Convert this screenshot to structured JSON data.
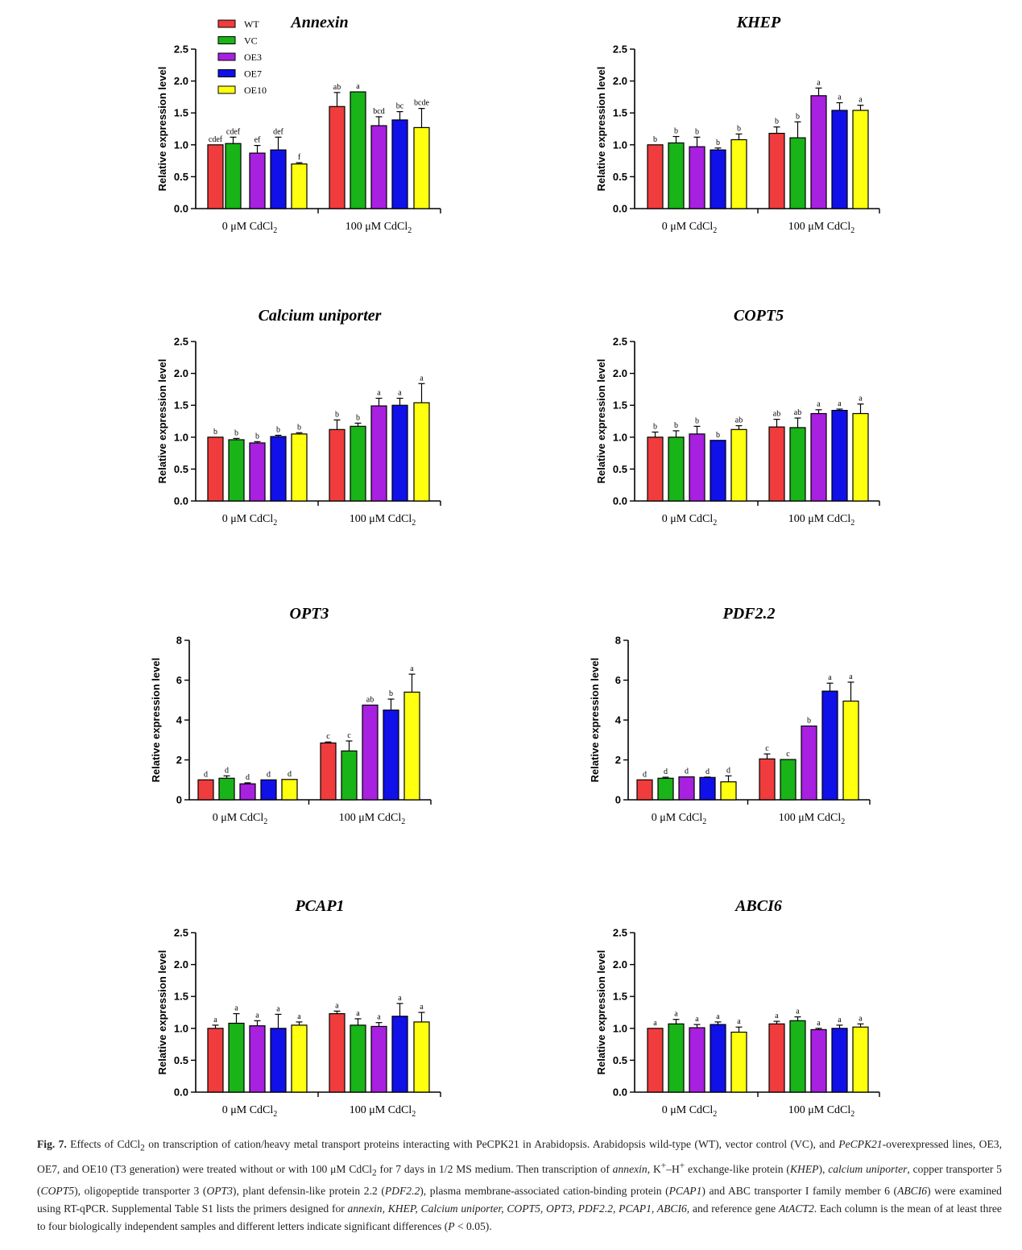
{
  "legend": {
    "items": [
      {
        "label": "WT",
        "color": "#f03c3c"
      },
      {
        "label": "VC",
        "color": "#18b418"
      },
      {
        "label": "OE3",
        "color": "#a820e0"
      },
      {
        "label": "OE7",
        "color": "#1010e8"
      },
      {
        "label": "OE10",
        "color": "#ffff10"
      }
    ]
  },
  "chart_data": [
    {
      "type": "bar",
      "title": "Annexin",
      "ylabel": "Relative expression level",
      "categories": [
        "0 μM CdCl₂",
        "100 μM CdCl₂"
      ],
      "ylim": [
        0,
        2.5
      ],
      "yticks": [
        "0.0",
        "0.5",
        "1.0",
        "1.5",
        "2.0",
        "2.5"
      ],
      "series": [
        {
          "name": "WT",
          "values": [
            1.0,
            1.6
          ],
          "errors": [
            0.0,
            0.22
          ],
          "letters": [
            "cdef",
            "ab"
          ]
        },
        {
          "name": "VC",
          "values": [
            1.02,
            1.83
          ],
          "errors": [
            0.1,
            0.0
          ],
          "letters": [
            "cdef",
            "a"
          ]
        },
        {
          "name": "OE3",
          "values": [
            0.87,
            1.3
          ],
          "errors": [
            0.12,
            0.14
          ],
          "letters": [
            "ef",
            "bcd"
          ]
        },
        {
          "name": "OE7",
          "values": [
            0.92,
            1.39
          ],
          "errors": [
            0.2,
            0.13
          ],
          "letters": [
            "def",
            "bc"
          ]
        },
        {
          "name": "OE10",
          "values": [
            0.7,
            1.27
          ],
          "errors": [
            0.02,
            0.3
          ],
          "letters": [
            "f",
            "bcde"
          ]
        }
      ]
    },
    {
      "type": "bar",
      "title": "KHEP",
      "ylabel": "Relative expression level",
      "categories": [
        "0 μM CdCl₂",
        "100 μM CdCl₂"
      ],
      "ylim": [
        0,
        2.5
      ],
      "yticks": [
        "0.0",
        "0.5",
        "1.0",
        "1.5",
        "2.0",
        "2.5"
      ],
      "series": [
        {
          "name": "WT",
          "values": [
            1.0,
            1.18
          ],
          "errors": [
            0.0,
            0.1
          ],
          "letters": [
            "b",
            "b"
          ]
        },
        {
          "name": "VC",
          "values": [
            1.03,
            1.11
          ],
          "errors": [
            0.1,
            0.25
          ],
          "letters": [
            "b",
            "b"
          ]
        },
        {
          "name": "OE3",
          "values": [
            0.97,
            1.77
          ],
          "errors": [
            0.15,
            0.12
          ],
          "letters": [
            "b",
            "a"
          ]
        },
        {
          "name": "OE7",
          "values": [
            0.92,
            1.54
          ],
          "errors": [
            0.03,
            0.12
          ],
          "letters": [
            "b",
            "a"
          ]
        },
        {
          "name": "OE10",
          "values": [
            1.08,
            1.54
          ],
          "errors": [
            0.09,
            0.08
          ],
          "letters": [
            "b",
            "a"
          ]
        }
      ]
    },
    {
      "type": "bar",
      "title": "Calcium uniporter",
      "ylabel": "Relative expression level",
      "categories": [
        "0 μM CdCl₂",
        "100 μM CdCl₂"
      ],
      "ylim": [
        0,
        2.5
      ],
      "yticks": [
        "0.0",
        "0.5",
        "1.0",
        "1.5",
        "2.0",
        "2.5"
      ],
      "series": [
        {
          "name": "WT",
          "values": [
            1.0,
            1.12
          ],
          "errors": [
            0.0,
            0.15
          ],
          "letters": [
            "b",
            "b"
          ]
        },
        {
          "name": "VC",
          "values": [
            0.96,
            1.17
          ],
          "errors": [
            0.02,
            0.05
          ],
          "letters": [
            "b",
            "b"
          ]
        },
        {
          "name": "OE3",
          "values": [
            0.91,
            1.49
          ],
          "errors": [
            0.02,
            0.12
          ],
          "letters": [
            "b",
            "a"
          ]
        },
        {
          "name": "OE7",
          "values": [
            1.01,
            1.5
          ],
          "errors": [
            0.02,
            0.11
          ],
          "letters": [
            "b",
            "a"
          ]
        },
        {
          "name": "OE10",
          "values": [
            1.05,
            1.54
          ],
          "errors": [
            0.02,
            0.3
          ],
          "letters": [
            "b",
            "a"
          ]
        }
      ]
    },
    {
      "type": "bar",
      "title": "COPT5",
      "ylabel": "Relative expression level",
      "categories": [
        "0 μM CdCl₂",
        "100 μM CdCl₂"
      ],
      "ylim": [
        0,
        2.5
      ],
      "yticks": [
        "0.0",
        "0.5",
        "1.0",
        "1.5",
        "2.0",
        "2.5"
      ],
      "series": [
        {
          "name": "WT",
          "values": [
            1.0,
            1.16
          ],
          "errors": [
            0.08,
            0.12
          ],
          "letters": [
            "b",
            "ab"
          ]
        },
        {
          "name": "VC",
          "values": [
            1.0,
            1.15
          ],
          "errors": [
            0.1,
            0.15
          ],
          "letters": [
            "b",
            "ab"
          ]
        },
        {
          "name": "OE3",
          "values": [
            1.05,
            1.37
          ],
          "errors": [
            0.12,
            0.06
          ],
          "letters": [
            "b",
            "a"
          ]
        },
        {
          "name": "OE7",
          "values": [
            0.95,
            1.42
          ],
          "errors": [
            0.0,
            0.02
          ],
          "letters": [
            "b",
            "a"
          ]
        },
        {
          "name": "OE10",
          "values": [
            1.12,
            1.37
          ],
          "errors": [
            0.06,
            0.15
          ],
          "letters": [
            "ab",
            "a"
          ]
        }
      ]
    },
    {
      "type": "bar",
      "title": "OPT3",
      "ylabel": "Relative expression level",
      "categories": [
        "0 μM CdCl₂",
        "100 μM CdCl₂"
      ],
      "ylim": [
        0,
        8
      ],
      "yticks": [
        "0",
        "2",
        "4",
        "6",
        "8"
      ],
      "series": [
        {
          "name": "WT",
          "values": [
            1.0,
            2.85
          ],
          "errors": [
            0.0,
            0.05
          ],
          "letters": [
            "d",
            "c"
          ]
        },
        {
          "name": "VC",
          "values": [
            1.08,
            2.45
          ],
          "errors": [
            0.12,
            0.5
          ],
          "letters": [
            "d",
            "c"
          ]
        },
        {
          "name": "OE3",
          "values": [
            0.8,
            4.75
          ],
          "errors": [
            0.05,
            0.0
          ],
          "letters": [
            "d",
            "ab"
          ]
        },
        {
          "name": "OE7",
          "values": [
            1.0,
            4.5
          ],
          "errors": [
            0.0,
            0.55
          ],
          "letters": [
            "d",
            "b"
          ]
        },
        {
          "name": "OE10",
          "values": [
            1.02,
            5.4
          ],
          "errors": [
            0.0,
            0.9
          ],
          "letters": [
            "d",
            "a"
          ]
        }
      ]
    },
    {
      "type": "bar",
      "title": "PDF2.2",
      "ylabel": "Relative expression level",
      "categories": [
        "0 μM CdCl₂",
        "100 μM CdCl₂"
      ],
      "ylim": [
        0,
        8
      ],
      "yticks": [
        "0",
        "2",
        "4",
        "6",
        "8"
      ],
      "series": [
        {
          "name": "WT",
          "values": [
            1.0,
            2.05
          ],
          "errors": [
            0.0,
            0.25
          ],
          "letters": [
            "d",
            "c"
          ]
        },
        {
          "name": "VC",
          "values": [
            1.08,
            2.02
          ],
          "errors": [
            0.05,
            0.0
          ],
          "letters": [
            "d",
            "c"
          ]
        },
        {
          "name": "OE3",
          "values": [
            1.15,
            3.7
          ],
          "errors": [
            0.0,
            0.0
          ],
          "letters": [
            "d",
            "b"
          ]
        },
        {
          "name": "OE7",
          "values": [
            1.12,
            5.45
          ],
          "errors": [
            0.02,
            0.4
          ],
          "letters": [
            "d",
            "a"
          ]
        },
        {
          "name": "OE10",
          "values": [
            0.9,
            4.95
          ],
          "errors": [
            0.3,
            0.95
          ],
          "letters": [
            "d",
            "a"
          ]
        }
      ]
    },
    {
      "type": "bar",
      "title": "PCAP1",
      "ylabel": "Relative expression level",
      "categories": [
        "0 μM CdCl₂",
        "100 μM CdCl₂"
      ],
      "ylim": [
        0,
        2.5
      ],
      "yticks": [
        "0.0",
        "0.5",
        "1.0",
        "1.5",
        "2.0",
        "2.5"
      ],
      "series": [
        {
          "name": "WT",
          "values": [
            1.0,
            1.23
          ],
          "errors": [
            0.05,
            0.04
          ],
          "letters": [
            "a",
            "a"
          ]
        },
        {
          "name": "VC",
          "values": [
            1.08,
            1.05
          ],
          "errors": [
            0.15,
            0.1
          ],
          "letters": [
            "a",
            "a"
          ]
        },
        {
          "name": "OE3",
          "values": [
            1.04,
            1.03
          ],
          "errors": [
            0.08,
            0.06
          ],
          "letters": [
            "a",
            "a"
          ]
        },
        {
          "name": "OE7",
          "values": [
            1.0,
            1.19
          ],
          "errors": [
            0.22,
            0.2
          ],
          "letters": [
            "a",
            "a"
          ]
        },
        {
          "name": "OE10",
          "values": [
            1.05,
            1.1
          ],
          "errors": [
            0.05,
            0.15
          ],
          "letters": [
            "a",
            "a"
          ]
        }
      ]
    },
    {
      "type": "bar",
      "title": "ABCI6",
      "ylabel": "Relative expression level",
      "categories": [
        "0 μM CdCl₂",
        "100 μM CdCl₂"
      ],
      "ylim": [
        0,
        2.5
      ],
      "yticks": [
        "0.0",
        "0.5",
        "1.0",
        "1.5",
        "2.0",
        "2.5"
      ],
      "series": [
        {
          "name": "WT",
          "values": [
            1.0,
            1.07
          ],
          "errors": [
            0.0,
            0.04
          ],
          "letters": [
            "a",
            "a"
          ]
        },
        {
          "name": "VC",
          "values": [
            1.07,
            1.12
          ],
          "errors": [
            0.07,
            0.06
          ],
          "letters": [
            "a",
            "a"
          ]
        },
        {
          "name": "OE3",
          "values": [
            1.01,
            0.98
          ],
          "errors": [
            0.05,
            0.02
          ],
          "letters": [
            "a",
            "a"
          ]
        },
        {
          "name": "OE7",
          "values": [
            1.06,
            1.0
          ],
          "errors": [
            0.04,
            0.05
          ],
          "letters": [
            "a",
            "a"
          ]
        },
        {
          "name": "OE10",
          "values": [
            0.94,
            1.02
          ],
          "errors": [
            0.08,
            0.05
          ],
          "letters": [
            "a",
            "a"
          ]
        }
      ]
    }
  ],
  "caption": {
    "label": "Fig. 7.",
    "segments": [
      {
        "t": " Effects of CdCl"
      },
      {
        "t": "2",
        "s": "sub"
      },
      {
        "t": " on transcription of cation/heavy metal transport proteins interacting with PeCPK21 in Arabidopsis. Arabidopsis wild-type (WT), vector control (VC), and "
      },
      {
        "t": "PeCPK21",
        "s": "i"
      },
      {
        "t": "-overexpressed lines, OE3, OE7, and OE10 (T3 generation) were treated without or with 100 μM CdCl"
      },
      {
        "t": "2",
        "s": "sub"
      },
      {
        "t": " for 7 days in 1/2 MS medium. Then transcription of "
      },
      {
        "t": "annexin",
        "s": "i"
      },
      {
        "t": ", K"
      },
      {
        "t": "+",
        "s": "sup"
      },
      {
        "t": "–H"
      },
      {
        "t": "+",
        "s": "sup"
      },
      {
        "t": " exchange-like protein ("
      },
      {
        "t": "KHEP",
        "s": "i"
      },
      {
        "t": "), "
      },
      {
        "t": "calcium uniporter",
        "s": "i"
      },
      {
        "t": ", copper transporter 5 ("
      },
      {
        "t": "COPT5",
        "s": "i"
      },
      {
        "t": "), oligopeptide transporter 3 ("
      },
      {
        "t": "OPT3",
        "s": "i"
      },
      {
        "t": "), plant defensin-like protein 2.2 ("
      },
      {
        "t": "PDF2.2",
        "s": "i"
      },
      {
        "t": "), plasma membrane-associated cation-binding protein ("
      },
      {
        "t": "PCAP1",
        "s": "i"
      },
      {
        "t": ") and ABC transporter I family member 6 ("
      },
      {
        "t": "ABCI6",
        "s": "i"
      },
      {
        "t": ") were examined using RT-qPCR. Supplemental Table S1 lists the primers designed for "
      },
      {
        "t": "annexin, KHEP, Calcium uniporter, COPT5, OPT3, PDF2.2, PCAP1, ABCI6,",
        "s": "i"
      },
      {
        "t": " and reference gene "
      },
      {
        "t": "AtACT2",
        "s": "i"
      },
      {
        "t": ". Each column is the mean of at least three to four biologically independent samples and different letters indicate significant differences ("
      },
      {
        "t": "P",
        "s": "i"
      },
      {
        "t": " < 0.05)."
      }
    ]
  }
}
